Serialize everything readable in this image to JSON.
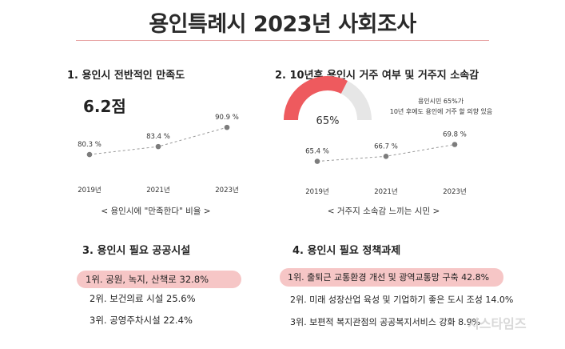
{
  "page": {
    "title": "용인특례시 2023년 사회조사",
    "watermark": "시스타임즈"
  },
  "section1": {
    "heading": "1. 용인시 전반적인 만족도",
    "score": "6.2점",
    "caption": "< 용인시에 \"만족한다\" 비율 >"
  },
  "section2": {
    "heading": "2. 10년후 용인시 거주 여부 및 거주지 소속감",
    "gauge_label": "65%",
    "note_line1": "용인시민 65%가",
    "note_line2": "10년 후에도 용인에 거주 할 의향 있음",
    "caption": "< 거주지 소속감 느끼는 시민 >"
  },
  "section3": {
    "heading": "3. 용인시 필요 공공시설",
    "items": [
      "1위. 공원, 녹지, 산책로 32.8%",
      "2위. 보건의료 시설 25.6%",
      "3위. 공영주차시설 22.4%"
    ]
  },
  "section4": {
    "heading": "4. 용인시 필요 정책과제",
    "items": [
      "1위. 출퇴근 교통환경 개선 및 광역교통망 구축 42.8%",
      "2위. 미래 성장산업 육성 및 기업하기 좋은 도시 조성 14.0%",
      "3위. 보편적 복지관점의 공공복지서비스 강화 8.9%"
    ]
  },
  "colors": {
    "accent": "#ee5a5e",
    "highlight": "#f6c6c6",
    "point": "#7c7c7c",
    "gauge_bg": "#e6e6e6"
  },
  "chart_data": [
    {
      "type": "line",
      "title": "1. 용인시 전반적인 만족도",
      "x": [
        "2019년",
        "2021년",
        "2023년"
      ],
      "values": [
        80.3,
        83.4,
        90.9
      ],
      "value_labels": [
        "80.3 %",
        "83.4  %",
        "90.9 %"
      ],
      "ylim": [
        75,
        95
      ],
      "style": "dashed",
      "grid": false
    },
    {
      "type": "pie",
      "title": "2. 10년후 용인시 거주 여부 및 거주지 소속감",
      "values": [
        65,
        35
      ],
      "labels": [
        "65%",
        ""
      ]
    },
    {
      "type": "line",
      "title": "2. 10년후 용인시 거주 여부 및 거주지 소속감",
      "x": [
        "2019년",
        "2021년",
        "2023년"
      ],
      "values": [
        65.4,
        66.7,
        69.8
      ],
      "value_labels": [
        "65.4 %",
        "66.7 %",
        "69.8 %"
      ],
      "ylim": [
        63,
        72
      ],
      "style": "dashed",
      "grid": false
    }
  ]
}
